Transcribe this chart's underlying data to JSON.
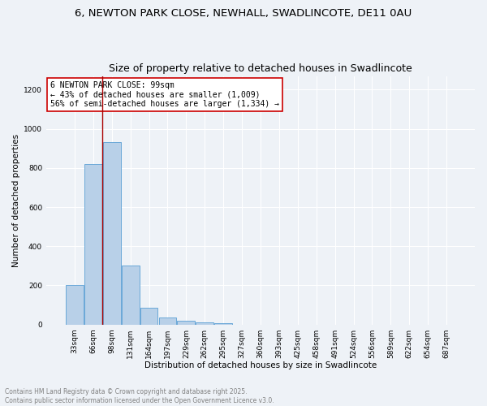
{
  "title": "6, NEWTON PARK CLOSE, NEWHALL, SWADLINCOTE, DE11 0AU",
  "subtitle": "Size of property relative to detached houses in Swadlincote",
  "xlabel": "Distribution of detached houses by size in Swadlincote",
  "ylabel": "Number of detached properties",
  "bar_labels": [
    "33sqm",
    "66sqm",
    "98sqm",
    "131sqm",
    "164sqm",
    "197sqm",
    "229sqm",
    "262sqm",
    "295sqm",
    "327sqm",
    "360sqm",
    "393sqm",
    "425sqm",
    "458sqm",
    "491sqm",
    "524sqm",
    "556sqm",
    "589sqm",
    "622sqm",
    "654sqm",
    "687sqm"
  ],
  "bar_values": [
    200,
    820,
    930,
    300,
    85,
    35,
    20,
    10,
    8,
    0,
    0,
    0,
    0,
    0,
    0,
    0,
    0,
    0,
    0,
    0,
    0
  ],
  "bar_color": "#b8d0e8",
  "bar_edgecolor": "#5a9fd4",
  "property_line_color": "#aa0000",
  "annotation_text": "6 NEWTON PARK CLOSE: 99sqm\n← 43% of detached houses are smaller (1,009)\n56% of semi-detached houses are larger (1,334) →",
  "ylim": [
    0,
    1270
  ],
  "yticks": [
    0,
    200,
    400,
    600,
    800,
    1000,
    1200
  ],
  "footnote1": "Contains HM Land Registry data © Crown copyright and database right 2025.",
  "footnote2": "Contains public sector information licensed under the Open Government Licence v3.0.",
  "bg_color": "#eef2f7",
  "grid_color": "#ffffff",
  "title_fontsize": 9.5,
  "label_fontsize": 7.5,
  "tick_fontsize": 6.5,
  "annot_fontsize": 7,
  "footnote_fontsize": 5.5
}
